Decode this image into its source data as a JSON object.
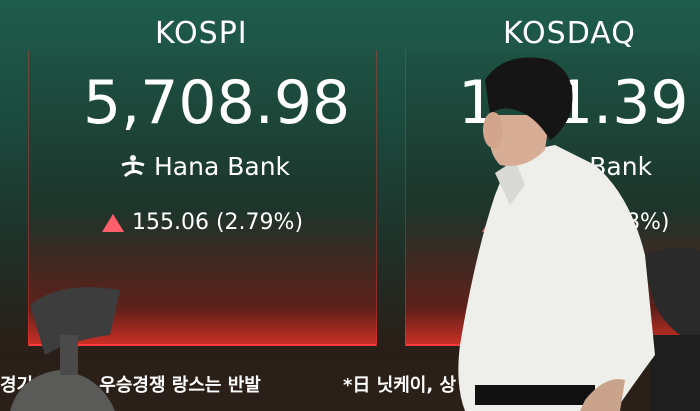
{
  "kospi": {
    "title": "KOSPI",
    "value": "5,708.98",
    "bank": "Hana Bank",
    "change": "155.06 (2.79%)",
    "direction": "up"
  },
  "kosdaq": {
    "title": "KOSDAQ",
    "value_visible": "1",
    "value_visible_right": "1.39",
    "bank": "a Bank",
    "change": "78%)",
    "direction": "up"
  },
  "ticker": {
    "left": "경기 여기 ...우승경쟁 랑스는 반발",
    "right": "*日 닛케이, 상"
  },
  "colors": {
    "up": "#ff5f6a",
    "panel_border": "#ff3b3b",
    "background_top": "#1f5c4c"
  }
}
